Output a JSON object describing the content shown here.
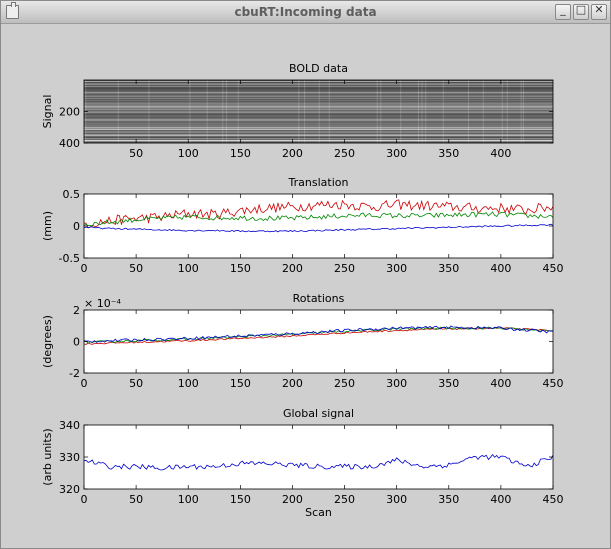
{
  "window": {
    "title": "cbuRT:Incoming data",
    "icon": "app-window-icon",
    "buttons": [
      {
        "name": "minimize-button",
        "glyph": "_"
      },
      {
        "name": "maximize-button",
        "glyph": "□"
      },
      {
        "name": "close-button",
        "glyph": "✕"
      }
    ]
  },
  "chart_data": [
    {
      "type": "heatmap",
      "title": "BOLD data",
      "ylabel": "Signal",
      "xlim": [
        0,
        450
      ],
      "ylim": [
        0,
        400
      ],
      "xticks": [
        50,
        100,
        150,
        200,
        250,
        300,
        350,
        400
      ],
      "yticks": [
        200,
        400
      ],
      "colormap": "gray"
    },
    {
      "type": "line",
      "title": "Translation",
      "ylabel": "(mm)",
      "xlim": [
        0,
        450
      ],
      "ylim": [
        -0.5,
        0.5
      ],
      "xticks": [
        0,
        50,
        100,
        150,
        200,
        250,
        300,
        350,
        400,
        450
      ],
      "yticks": [
        -0.5,
        0,
        0.5
      ],
      "series": [
        {
          "color": "#cc0000",
          "x": [
            0,
            25,
            50,
            75,
            100,
            125,
            150,
            175,
            200,
            225,
            250,
            275,
            300,
            325,
            350,
            375,
            400,
            425,
            450
          ],
          "values": [
            0.03,
            0.08,
            0.12,
            0.14,
            0.2,
            0.18,
            0.24,
            0.28,
            0.3,
            0.33,
            0.34,
            0.3,
            0.33,
            0.32,
            0.3,
            0.28,
            0.28,
            0.25,
            0.3
          ],
          "noise": 0.08
        },
        {
          "color": "#008800",
          "x": [
            0,
            25,
            50,
            75,
            100,
            125,
            150,
            175,
            200,
            225,
            250,
            275,
            300,
            325,
            350,
            375,
            400,
            425,
            450
          ],
          "values": [
            0.02,
            0.06,
            0.1,
            0.12,
            0.14,
            0.13,
            0.13,
            0.12,
            0.12,
            0.14,
            0.16,
            0.17,
            0.16,
            0.16,
            0.17,
            0.18,
            0.18,
            0.16,
            0.15
          ],
          "noise": 0.04
        },
        {
          "color": "#0000cc",
          "x": [
            0,
            25,
            50,
            75,
            100,
            125,
            150,
            175,
            200,
            225,
            250,
            275,
            300,
            325,
            350,
            375,
            400,
            425,
            450
          ],
          "values": [
            -0.02,
            -0.04,
            -0.05,
            -0.06,
            -0.07,
            -0.07,
            -0.08,
            -0.08,
            -0.08,
            -0.07,
            -0.06,
            -0.05,
            -0.04,
            -0.03,
            -0.02,
            -0.01,
            0.0,
            0.01,
            0.02
          ],
          "noise": 0.012
        }
      ]
    },
    {
      "type": "line",
      "title": "Rotations",
      "ylabel": "(degrees)",
      "yexponent": "× 10⁻⁴",
      "xlim": [
        0,
        450
      ],
      "ylim": [
        -2,
        2
      ],
      "xticks": [
        0,
        50,
        100,
        150,
        200,
        250,
        300,
        350,
        400,
        450
      ],
      "yticks": [
        -2,
        0,
        2
      ],
      "series": [
        {
          "color": "#cc0000",
          "x": [
            0,
            50,
            100,
            150,
            200,
            250,
            300,
            350,
            400,
            450
          ],
          "values": [
            -0.15,
            -0.05,
            0.05,
            0.2,
            0.35,
            0.55,
            0.7,
            0.8,
            0.85,
            0.7
          ],
          "noise": 0.05
        },
        {
          "color": "#008800",
          "x": [
            0,
            50,
            100,
            150,
            200,
            250,
            300,
            350,
            400,
            450
          ],
          "values": [
            -0.05,
            0.05,
            0.15,
            0.3,
            0.45,
            0.65,
            0.8,
            0.85,
            0.85,
            0.65
          ],
          "noise": 0.07
        },
        {
          "color": "#0000cc",
          "x": [
            0,
            50,
            100,
            150,
            200,
            250,
            300,
            350,
            400,
            450
          ],
          "values": [
            0.0,
            0.1,
            0.2,
            0.35,
            0.5,
            0.7,
            0.85,
            0.9,
            0.85,
            0.6
          ],
          "noise": 0.09
        }
      ]
    },
    {
      "type": "line",
      "title": "Global signal",
      "ylabel": "(arb units)",
      "xlabel": "Scan",
      "xlim": [
        0,
        450
      ],
      "ylim": [
        320,
        340
      ],
      "xticks": [
        0,
        50,
        100,
        150,
        200,
        250,
        300,
        350,
        400,
        450
      ],
      "yticks": [
        320,
        330,
        340
      ],
      "series": [
        {
          "color": "#0000cc",
          "x": [
            0,
            25,
            50,
            75,
            100,
            125,
            150,
            175,
            200,
            225,
            250,
            275,
            300,
            325,
            350,
            375,
            400,
            425,
            450
          ],
          "values": [
            329,
            327,
            327,
            326.5,
            327,
            327,
            328,
            328,
            327.5,
            327,
            327,
            327,
            329,
            327,
            327.5,
            330,
            330,
            327,
            330
          ],
          "noise": 0.8
        }
      ]
    }
  ]
}
